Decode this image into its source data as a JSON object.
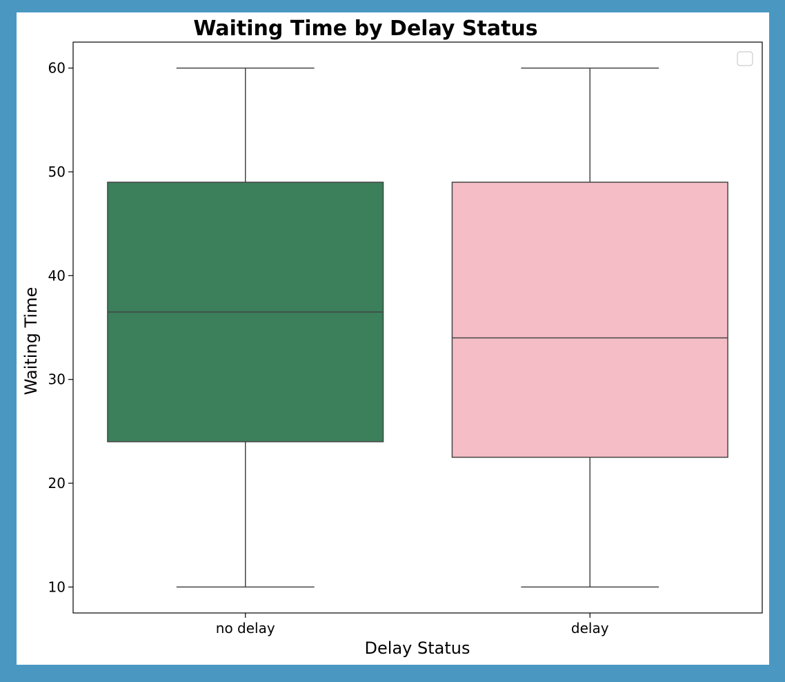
{
  "chart_data": {
    "type": "box",
    "title": "Waiting Time by Delay Status",
    "xlabel": "Delay Status",
    "ylabel": "Waiting Time",
    "ylim": [
      7.5,
      62.5
    ],
    "yticks": [
      10,
      20,
      30,
      40,
      50,
      60
    ],
    "categories": [
      "no delay",
      "delay"
    ],
    "boxes": [
      {
        "category": "no delay",
        "min": 10,
        "q1": 24,
        "median": 36.5,
        "q3": 49,
        "max": 60,
        "color": "#3b7f5b"
      },
      {
        "category": "delay",
        "min": 10,
        "q1": 22.5,
        "median": 34,
        "q3": 49,
        "max": 60,
        "color": "#f5bec6"
      }
    ],
    "legend": {
      "placement": "top-right",
      "entries": []
    },
    "grid": false,
    "line_color": "#444444"
  }
}
